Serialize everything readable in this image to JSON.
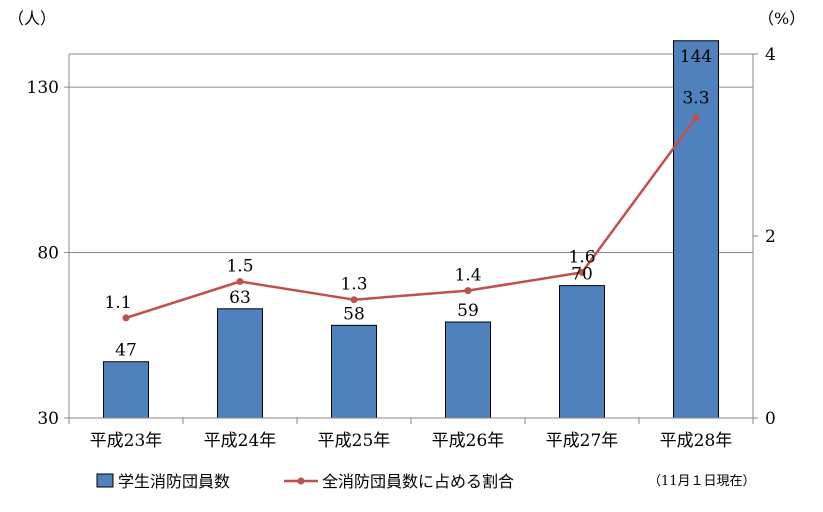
{
  "chart_data": {
    "type": "bar",
    "categories": [
      "平成23年",
      "平成24年",
      "平成25年",
      "平成26年",
      "平成27年",
      "平成28年"
    ],
    "series": [
      {
        "name": "学生消防団員数",
        "type": "bar",
        "axis": "left",
        "color": "#4f81bd",
        "values": [
          47,
          63,
          58,
          59,
          70,
          144
        ],
        "labels": [
          "47",
          "63",
          "58",
          "59",
          "70",
          "144"
        ]
      },
      {
        "name": "全消防団員数に占める割合",
        "type": "line",
        "axis": "right",
        "color": "#c0504d",
        "values": [
          1.1,
          1.5,
          1.3,
          1.4,
          1.6,
          3.3
        ],
        "labels": [
          "1.1",
          "1.5",
          "1.3",
          "1.4",
          "1.6",
          "3.3"
        ]
      }
    ],
    "left_axis": {
      "unit": "（人）",
      "min": 30,
      "max": 140,
      "ticks": [
        30,
        80,
        130
      ]
    },
    "right_axis": {
      "unit": "（%）",
      "min": 0,
      "max": 4,
      "ticks": [
        0,
        2,
        4
      ]
    },
    "grid": true,
    "legend_position": "bottom",
    "note": "（11月１日現在）"
  }
}
